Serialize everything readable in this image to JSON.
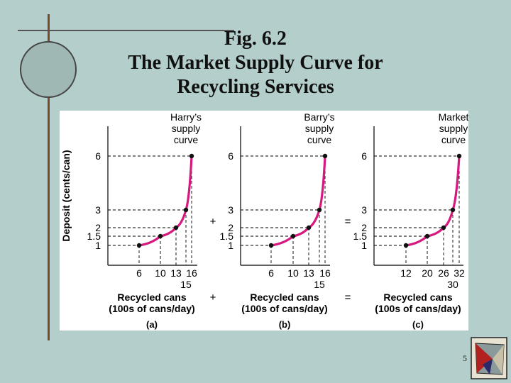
{
  "slide": {
    "title_lines": [
      "Fig. 6.2",
      "The Market Supply Curve for",
      "Recycling Services"
    ],
    "slide_number": "5"
  },
  "colors": {
    "background": "#b4cfcb",
    "curve": "#d6187f",
    "points": "#111111",
    "panel": "#ffffff"
  },
  "chart_data": [
    {
      "type": "line",
      "panel_label": "(a)",
      "curve_label": "Harry’s\nsupply\ncurve",
      "xlabel": "Recycled cans\n(100s of cans/day)",
      "ylabel": "Deposit (cents/can)",
      "x": [
        6,
        10,
        13,
        15,
        16
      ],
      "y": [
        1,
        1.5,
        2,
        3,
        6
      ],
      "x_ticks": [
        "6",
        "10",
        "13",
        "16"
      ],
      "x_tick_below": "15",
      "y_ticks": [
        "6",
        "3",
        "2",
        "1.5",
        "1"
      ]
    },
    {
      "type": "line",
      "panel_label": "(b)",
      "curve_label": "Barry’s\nsupply\ncurve",
      "xlabel": "Recycled cans\n(100s of cans/day)",
      "x": [
        6,
        10,
        13,
        15,
        16
      ],
      "y": [
        1,
        1.5,
        2,
        3,
        6
      ],
      "x_ticks": [
        "6",
        "10",
        "13",
        "16"
      ],
      "x_tick_below": "15",
      "y_ticks": [
        "6",
        "3",
        "2",
        "1.5",
        "1"
      ]
    },
    {
      "type": "line",
      "panel_label": "(c)",
      "curve_label": "Market\nsupply\ncurve",
      "xlabel": "Recycled cans\n(100s of cans/day)",
      "x": [
        12,
        20,
        26,
        30,
        32
      ],
      "y": [
        1,
        1.5,
        2,
        3,
        6
      ],
      "x_ticks": [
        "12",
        "20",
        "26",
        "32"
      ],
      "x_tick_below": "30",
      "y_ticks": [
        "6",
        "3",
        "2",
        "1.5",
        "1"
      ]
    }
  ],
  "operators": {
    "plus": "+",
    "equals": "="
  }
}
